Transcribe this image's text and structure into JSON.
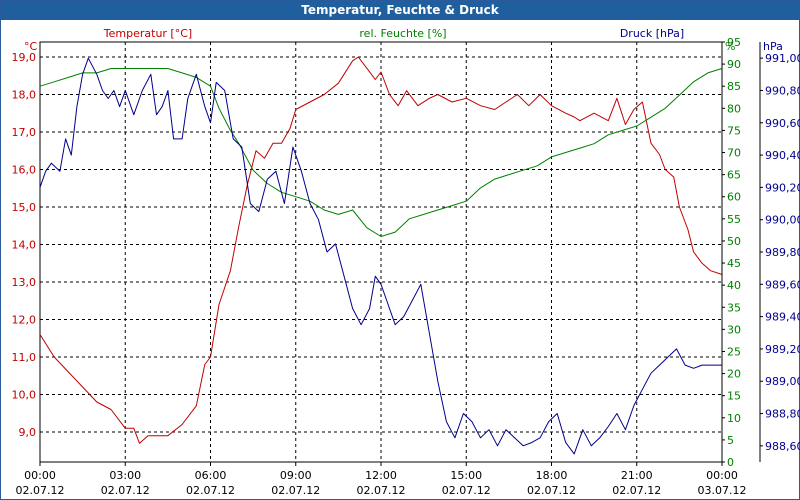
{
  "window": {
    "title": "Temperatur, Feuchte & Druck"
  },
  "chart_data": {
    "type": "line",
    "title": "Temperatur, Feuchte & Druck",
    "colors": {
      "temp": "#c00000",
      "hum": "#008000",
      "press": "#00008b",
      "grid": "#000000",
      "title_bg": "#1f5f9e"
    },
    "x_ticks": [
      {
        "time": "00:00",
        "date": "02.07.12"
      },
      {
        "time": "03:00",
        "date": "02.07.12"
      },
      {
        "time": "06:00",
        "date": "02.07.12"
      },
      {
        "time": "09:00",
        "date": "02.07.12"
      },
      {
        "time": "12:00",
        "date": "02.07.12"
      },
      {
        "time": "15:00",
        "date": "02.07.12"
      },
      {
        "time": "18:00",
        "date": "02.07.12"
      },
      {
        "time": "21:00",
        "date": "02.07.12"
      },
      {
        "time": "00:00",
        "date": "03.07.12"
      }
    ],
    "xlim_hours": [
      0,
      24
    ],
    "axes": {
      "temp": {
        "label": "Temperatur [°C]",
        "unit": "°C",
        "ylim": [
          8.2,
          19.4
        ],
        "ticks": [
          "9,0",
          "10,0",
          "11,0",
          "12,0",
          "13,0",
          "14,0",
          "15,0",
          "16,0",
          "17,0",
          "18,0",
          "19,0"
        ]
      },
      "hum": {
        "label": "rel. Feuchte [%]",
        "unit": "%",
        "ylim": [
          0,
          95
        ],
        "ticks": [
          "0",
          "5",
          "10",
          "15",
          "20",
          "25",
          "30",
          "35",
          "40",
          "45",
          "50",
          "55",
          "60",
          "65",
          "70",
          "75",
          "80",
          "85",
          "90",
          "95"
        ]
      },
      "press": {
        "label": "Druck [hPa]",
        "unit": "hPa",
        "ylim": [
          988.5,
          991.1
        ],
        "ticks": [
          "988,60",
          "988,80",
          "989,00",
          "989,20",
          "989,40",
          "989,60",
          "989,80",
          "990,00",
          "990,20",
          "990,40",
          "990,60",
          "990,80",
          "991,00"
        ]
      }
    },
    "series": [
      {
        "name": "Temperatur [°C]",
        "axis": "temp",
        "x": [
          0,
          0.5,
          1,
          1.5,
          2,
          2.5,
          3,
          3.3,
          3.5,
          3.8,
          4,
          4.5,
          5,
          5.5,
          5.8,
          6,
          6.3,
          6.7,
          7,
          7.3,
          7.6,
          7.9,
          8.2,
          8.5,
          8.8,
          9,
          9.5,
          10,
          10.5,
          11,
          11.2,
          11.5,
          11.8,
          12,
          12.3,
          12.6,
          12.9,
          13.3,
          13.7,
          14,
          14.5,
          15,
          15.5,
          16,
          16.4,
          16.8,
          17.2,
          17.6,
          18,
          18.5,
          18.8,
          19,
          19.5,
          20,
          20.3,
          20.6,
          20.9,
          21.2,
          21.5,
          21.8,
          22,
          22.3,
          22.5,
          22.8,
          23,
          23.3,
          23.6,
          24
        ],
        "values": [
          11.6,
          11.0,
          10.6,
          10.2,
          9.8,
          9.6,
          9.1,
          9.1,
          8.7,
          8.9,
          8.9,
          8.9,
          9.2,
          9.7,
          10.8,
          11.0,
          12.4,
          13.3,
          14.5,
          15.6,
          16.5,
          16.3,
          16.7,
          16.7,
          17.1,
          17.6,
          17.8,
          18.0,
          18.3,
          18.9,
          19.0,
          18.7,
          18.4,
          18.6,
          18.0,
          17.7,
          18.1,
          17.7,
          17.9,
          18.0,
          17.8,
          17.9,
          17.7,
          17.6,
          17.8,
          18.0,
          17.7,
          18.0,
          17.7,
          17.5,
          17.4,
          17.3,
          17.5,
          17.3,
          17.9,
          17.2,
          17.6,
          17.8,
          16.7,
          16.4,
          16.0,
          15.8,
          15.0,
          14.4,
          13.8,
          13.5,
          13.3,
          13.2
        ]
      },
      {
        "name": "rel. Feuchte [%]",
        "axis": "hum",
        "x": [
          0,
          0.5,
          1,
          1.5,
          2,
          2.5,
          3,
          3.5,
          4,
          4.5,
          5,
          5.5,
          6,
          6.3,
          6.7,
          7,
          7.5,
          8,
          8.5,
          9,
          9.5,
          10,
          10.5,
          11,
          11.5,
          12,
          12.5,
          13,
          13.5,
          14,
          14.5,
          15,
          15.5,
          16,
          16.5,
          17,
          17.5,
          18,
          18.5,
          19,
          19.5,
          20,
          20.5,
          21,
          21.5,
          22,
          22.5,
          23,
          23.5,
          24
        ],
        "values": [
          85,
          86,
          87,
          88,
          88,
          89,
          89,
          89,
          89,
          89,
          88,
          87,
          85,
          80,
          75,
          72,
          66,
          63,
          61,
          60,
          59,
          57,
          56,
          57,
          53,
          51,
          52,
          55,
          56,
          57,
          58,
          59,
          62,
          64,
          65,
          66,
          67,
          69,
          70,
          71,
          72,
          74,
          75,
          76,
          78,
          80,
          83,
          86,
          88,
          89
        ]
      },
      {
        "name": "Druck [hPa]",
        "axis": "press",
        "x": [
          0,
          0.2,
          0.4,
          0.7,
          0.9,
          1.1,
          1.3,
          1.5,
          1.7,
          2,
          2.2,
          2.4,
          2.6,
          2.8,
          3,
          3.3,
          3.6,
          3.9,
          4.1,
          4.3,
          4.5,
          4.7,
          5,
          5.2,
          5.5,
          5.8,
          6,
          6.2,
          6.5,
          6.8,
          7.1,
          7.4,
          7.7,
          8,
          8.3,
          8.6,
          8.9,
          9.2,
          9.5,
          9.8,
          10.1,
          10.4,
          10.7,
          11,
          11.3,
          11.6,
          11.8,
          12,
          12.2,
          12.5,
          12.8,
          13.1,
          13.4,
          13.7,
          14,
          14.3,
          14.6,
          14.9,
          15.2,
          15.5,
          15.8,
          16.1,
          16.4,
          16.7,
          17,
          17.3,
          17.6,
          17.9,
          18.2,
          18.5,
          18.8,
          19.1,
          19.4,
          19.7,
          20,
          20.3,
          20.6,
          20.9,
          21.2,
          21.5,
          21.8,
          22.1,
          22.4,
          22.7,
          23,
          23.3,
          23.5,
          23.7,
          24
        ],
        "values": [
          990.2,
          990.3,
          990.35,
          990.3,
          990.5,
          990.4,
          990.7,
          990.9,
          991.0,
          990.9,
          990.8,
          990.75,
          990.8,
          990.7,
          990.8,
          990.65,
          990.8,
          990.9,
          990.65,
          990.7,
          990.8,
          990.5,
          990.5,
          990.75,
          990.9,
          990.7,
          990.6,
          990.85,
          990.8,
          990.5,
          990.45,
          990.1,
          990.05,
          990.25,
          990.3,
          990.1,
          990.45,
          990.3,
          990.1,
          990.0,
          989.8,
          989.85,
          989.65,
          989.45,
          989.35,
          989.45,
          989.65,
          989.6,
          989.5,
          989.35,
          989.4,
          989.5,
          989.6,
          989.3,
          989.0,
          988.75,
          988.65,
          988.8,
          988.75,
          988.65,
          988.7,
          988.6,
          988.7,
          988.65,
          988.6,
          988.62,
          988.65,
          988.75,
          988.8,
          988.62,
          988.55,
          988.7,
          988.6,
          988.65,
          988.72,
          988.8,
          988.7,
          988.85,
          988.95,
          989.05,
          989.1,
          989.15,
          989.2,
          989.1,
          989.08,
          989.1,
          989.1,
          989.1,
          989.1
        ]
      }
    ]
  }
}
